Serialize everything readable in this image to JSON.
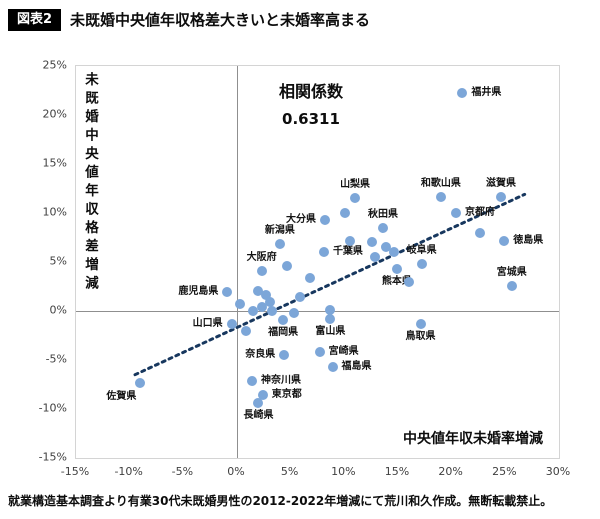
{
  "header": {
    "badge": "図表2",
    "title": "未既婚中央値年収格差大きいと未婚率高まる"
  },
  "footer": {
    "caption": "就業構造基本調査より有業30代未既婚男性の2012-2022年増減にて荒川和久作成。無断転載禁止。"
  },
  "chart_data": {
    "type": "scatter",
    "title": "未既婚中央値年収格差大きいと未婚率高まる",
    "xlabel": "中央値年収未婚率増減",
    "ylabel": "未既婚中央値年収格差増減",
    "xlim": [
      -15,
      30
    ],
    "ylim": [
      -15,
      25
    ],
    "tick_step": 5,
    "x_ticks": [
      "-15%",
      "-10%",
      "-5%",
      "0%",
      "5%",
      "10%",
      "15%",
      "20%",
      "25%",
      "30%"
    ],
    "y_ticks": [
      "25%",
      "20%",
      "15%",
      "10%",
      "5%",
      "0%",
      "-5%",
      "-10%",
      "-15%"
    ],
    "grid": false,
    "annotation": {
      "label": "相関係数",
      "value": "0.6311"
    },
    "point_color": "#7ca6d8",
    "trend": {
      "x1": -9.5,
      "y1": -6.5,
      "x2": 26.8,
      "y2": 11.9,
      "style": "dotted",
      "color": "#17375e"
    },
    "points": [
      {
        "x": 21.0,
        "y": 22.2,
        "label": "福井県",
        "label_pos": "right"
      },
      {
        "x": 24.6,
        "y": 11.6,
        "label": "滋賀県",
        "label_pos": "above"
      },
      {
        "x": 19.0,
        "y": 11.6,
        "label": "和歌山県",
        "label_pos": "above"
      },
      {
        "x": 11.0,
        "y": 11.5,
        "label": "山梨県",
        "label_pos": "above"
      },
      {
        "x": 20.4,
        "y": 10.0,
        "label": "京都府",
        "label_pos": "right"
      },
      {
        "x": 13.6,
        "y": 8.5,
        "label": "秋田県",
        "label_pos": "above"
      },
      {
        "x": 8.2,
        "y": 9.3,
        "label": "大分県",
        "label_pos": "left"
      },
      {
        "x": 4.0,
        "y": 6.8,
        "label": "新潟県",
        "label_pos": "above"
      },
      {
        "x": 8.1,
        "y": 6.0,
        "label": "千葉県",
        "label_pos": "right"
      },
      {
        "x": 24.9,
        "y": 7.1,
        "label": "徳島県",
        "label_pos": "right"
      },
      {
        "x": 2.3,
        "y": 4.1,
        "label": "大阪府",
        "label_pos": "above"
      },
      {
        "x": 17.2,
        "y": 4.8,
        "label": "岐阜県",
        "label_pos": "above"
      },
      {
        "x": 14.9,
        "y": 4.3,
        "label": "熊本県",
        "label_pos": "below"
      },
      {
        "x": 25.6,
        "y": 2.6,
        "label": "宮城県",
        "label_pos": "above"
      },
      {
        "x": -0.9,
        "y": 1.9,
        "label": "鹿児島県",
        "label_pos": "left"
      },
      {
        "x": -0.5,
        "y": -1.3,
        "label": "山口県",
        "label_pos": "left"
      },
      {
        "x": 4.3,
        "y": -0.9,
        "label": "福岡県",
        "label_pos": "below"
      },
      {
        "x": 8.7,
        "y": -0.8,
        "label": "富山県",
        "label_pos": "below"
      },
      {
        "x": 17.1,
        "y": -1.3,
        "label": "鳥取県",
        "label_pos": "below"
      },
      {
        "x": 4.4,
        "y": -4.5,
        "label": "奈良県",
        "label_pos": "left"
      },
      {
        "x": 7.7,
        "y": -4.2,
        "label": "宮崎県",
        "label_pos": "right"
      },
      {
        "x": 8.9,
        "y": -5.7,
        "label": "福島県",
        "label_pos": "right"
      },
      {
        "x": 1.4,
        "y": -7.1,
        "label": "神奈川県",
        "label_pos": "right"
      },
      {
        "x": 2.4,
        "y": -8.6,
        "label": "東京都",
        "label_pos": "right"
      },
      {
        "x": 2.0,
        "y": -9.4,
        "label": "長崎県",
        "label_pos": "below"
      },
      {
        "x": -9.0,
        "y": -7.3,
        "label": "佐賀県",
        "label_pos": "below-left"
      },
      {
        "x": 10.1,
        "y": 10.0
      },
      {
        "x": 10.5,
        "y": 7.1
      },
      {
        "x": 12.6,
        "y": 7.0
      },
      {
        "x": 13.9,
        "y": 6.5
      },
      {
        "x": 14.6,
        "y": 6.0
      },
      {
        "x": 12.9,
        "y": 5.5
      },
      {
        "x": 22.6,
        "y": 8.0
      },
      {
        "x": 16.0,
        "y": 3.0
      },
      {
        "x": 6.8,
        "y": 3.4
      },
      {
        "x": 4.7,
        "y": 4.6
      },
      {
        "x": 5.9,
        "y": 1.4
      },
      {
        "x": 8.7,
        "y": 0.1
      },
      {
        "x": 2.0,
        "y": 2.0
      },
      {
        "x": 2.7,
        "y": 1.6
      },
      {
        "x": 3.1,
        "y": 0.9
      },
      {
        "x": 2.3,
        "y": 0.4
      },
      {
        "x": 1.5,
        "y": 0.0
      },
      {
        "x": 3.3,
        "y": 0.0
      },
      {
        "x": 0.3,
        "y": 0.7
      },
      {
        "x": 0.8,
        "y": -2.0
      },
      {
        "x": 5.3,
        "y": -0.2
      }
    ]
  }
}
